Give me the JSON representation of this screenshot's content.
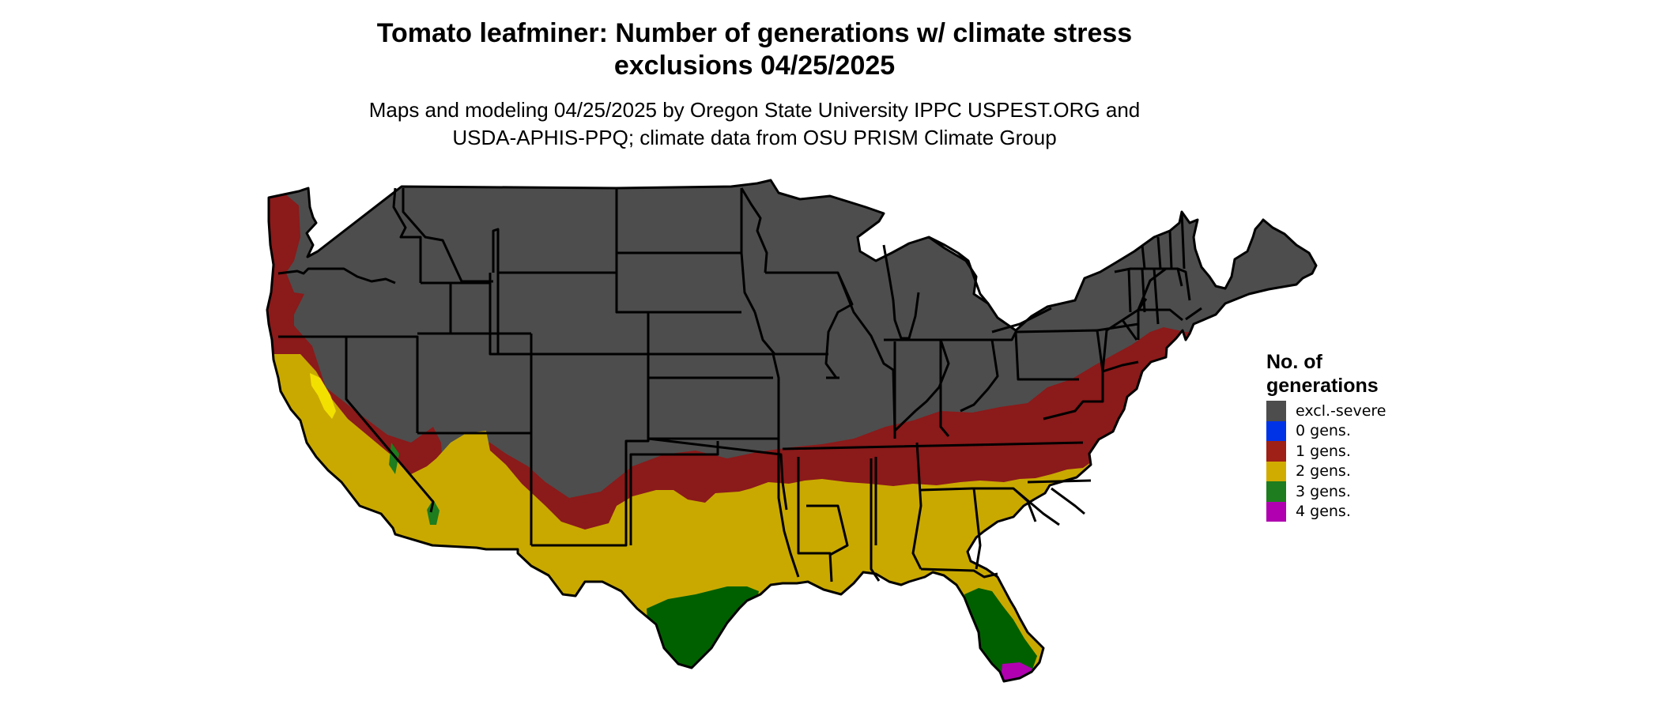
{
  "title": {
    "line1": "Tomato leafminer: Number of generations w/ climate stress",
    "line2": "exclusions 04/25/2025"
  },
  "subtitle": {
    "line1": "Maps and modeling 04/25/2025 by Oregon State University IPPC USPEST.ORG and",
    "line2": "USDA-APHIS-PPQ; climate data from OSU PRISM Climate Group"
  },
  "legend": {
    "title_line1": "No. of",
    "title_line2": "generations",
    "items": [
      {
        "label": "excl.-severe",
        "color": "#4d4d4d"
      },
      {
        "label": "0 gens.",
        "color": "#0033e6"
      },
      {
        "label": "1 gens.",
        "color": "#9e2016"
      },
      {
        "label": "2 gens.",
        "color": "#d1ac00"
      },
      {
        "label": "3 gens.",
        "color": "#1e7d1e"
      },
      {
        "label": "4 gens.",
        "color": "#b000b0"
      }
    ]
  },
  "map": {
    "colors": {
      "excluded": "#4d4d4d",
      "one_gen": "#8b1a1a",
      "two_gen": "#c9a900",
      "yellow_bright": "#f2e000",
      "three_gen": "#006000",
      "three_gen_light": "#79c07a",
      "four_gen": "#b000b0",
      "border": "#000000"
    }
  }
}
